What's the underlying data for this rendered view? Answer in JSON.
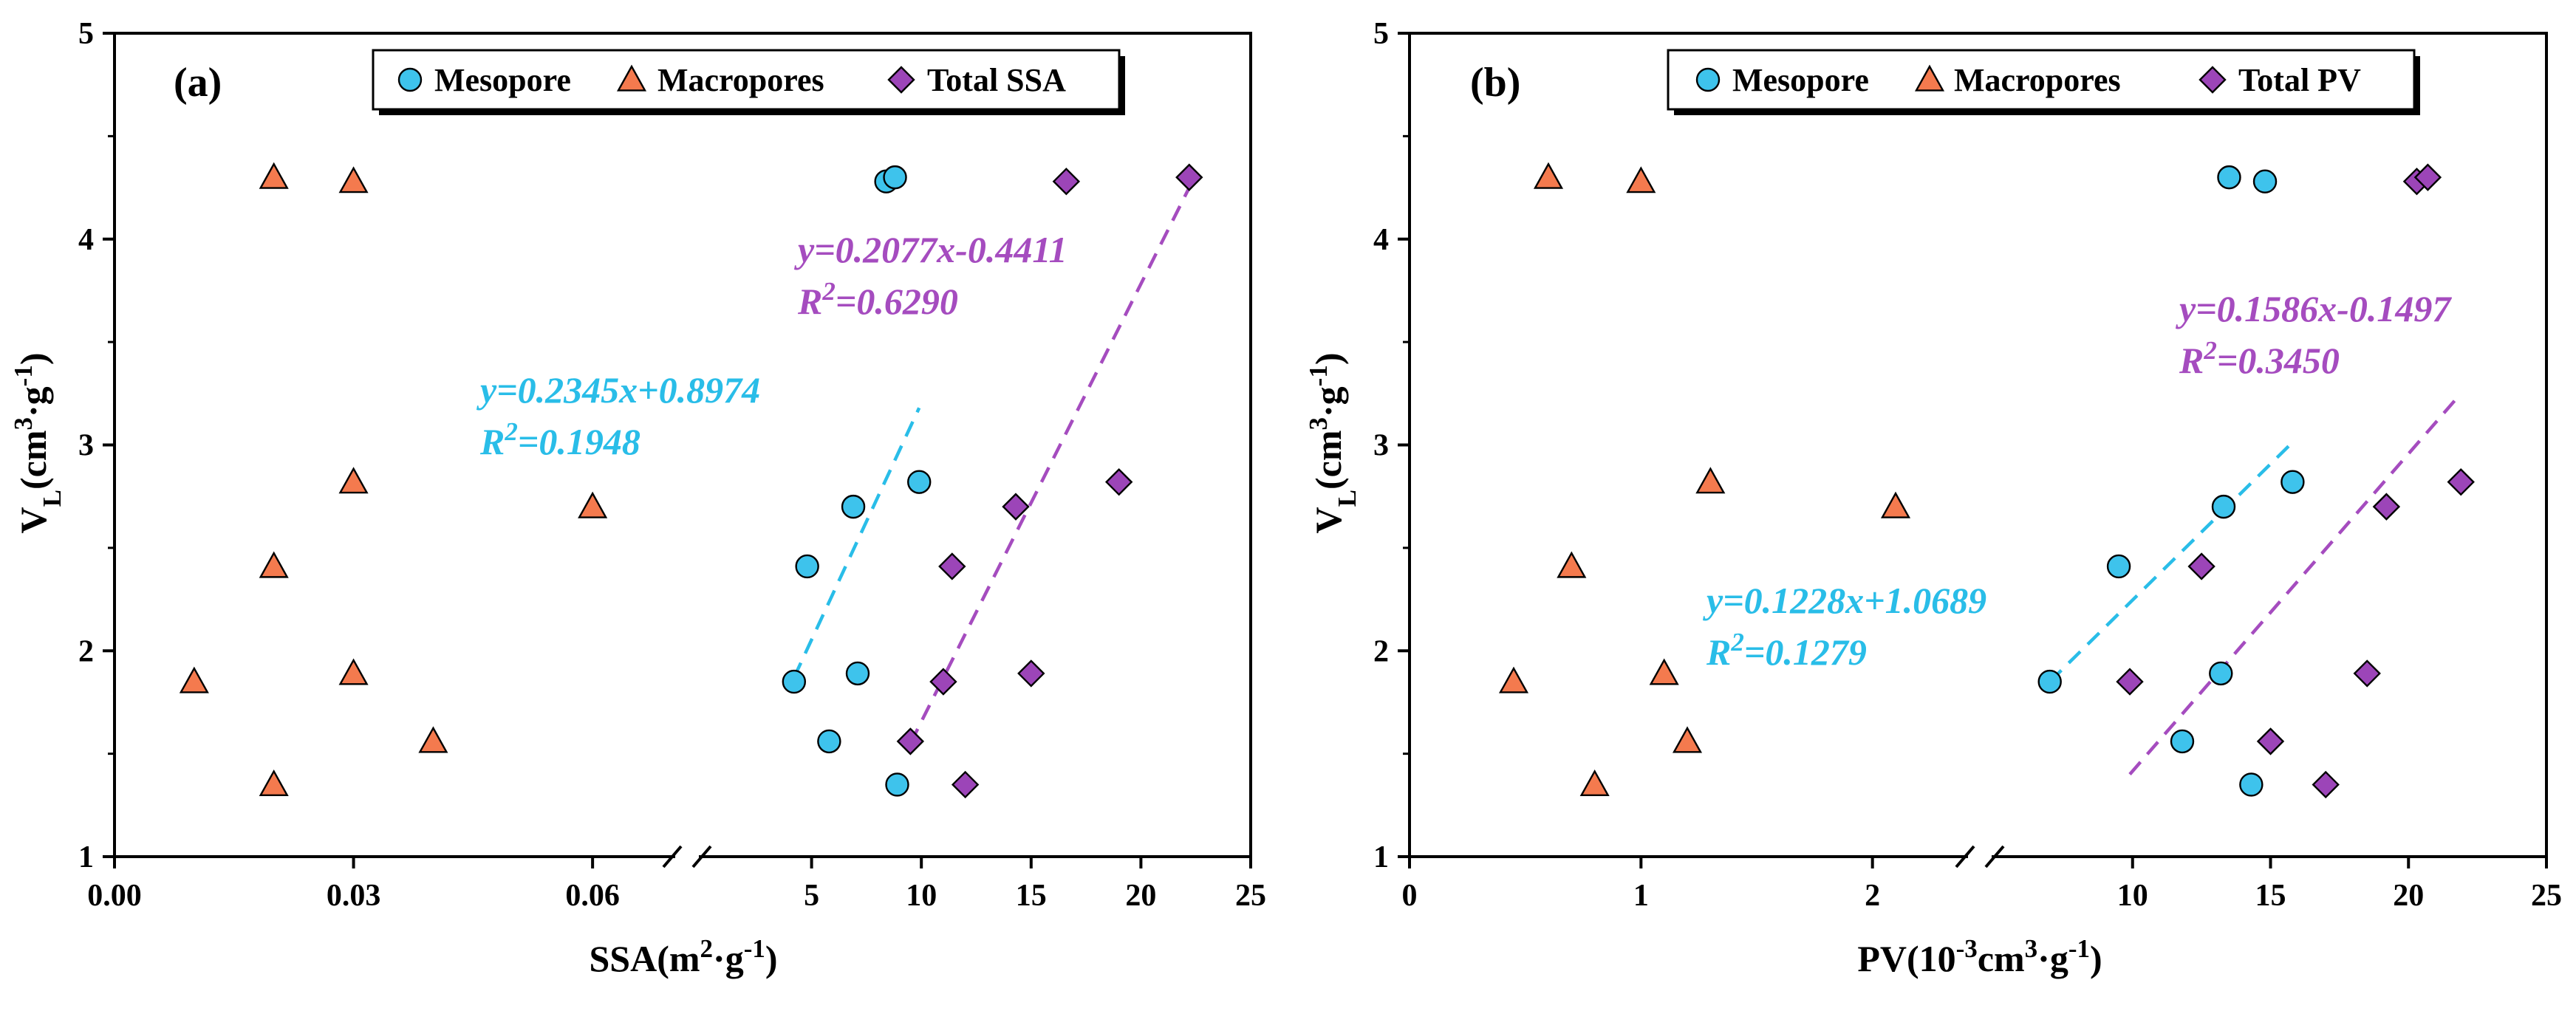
{
  "colors": {
    "mesopore": "#3ec3ec",
    "macropores": "#f47a4e",
    "total": "#9c45b8",
    "meso_fit": "#29bde8",
    "total_fit": "#a54cbf"
  },
  "chart_data": [
    {
      "type": "scatter",
      "panel_label": "(a)",
      "title": "",
      "xlabel": "SSA(m²·g⁻¹)",
      "ylabel": "VL(cm³·g⁻¹)",
      "ylim": [
        1,
        5
      ],
      "yticks": [
        "1",
        "2",
        "3",
        "4",
        "5"
      ],
      "x_left_segment": {
        "range": [
          0,
          0.07
        ],
        "ticks": [
          0.0,
          0.03,
          0.06
        ],
        "tick_labels": [
          "0.00",
          "0.03",
          "0.06"
        ]
      },
      "x_right_segment": {
        "range": [
          0,
          25
        ],
        "ticks": [
          5,
          10,
          15,
          20,
          25
        ],
        "tick_labels": [
          "5",
          "10",
          "15",
          "20",
          "25"
        ]
      },
      "legend": [
        "Mesopore",
        "Macropores",
        "Total SSA"
      ],
      "legend_position": "top-right",
      "series": [
        {
          "name": "Mesopore",
          "marker": "circle",
          "segment": "right",
          "points": [
            [
              4.2,
              1.85
            ],
            [
              4.8,
              2.41
            ],
            [
              5.8,
              1.56
            ],
            [
              6.9,
              2.7
            ],
            [
              7.1,
              1.89
            ],
            [
              8.4,
              4.28
            ],
            [
              8.8,
              4.3
            ],
            [
              8.9,
              1.35
            ],
            [
              9.9,
              2.82
            ]
          ]
        },
        {
          "name": "Macropores",
          "marker": "triangle",
          "segment": "left",
          "points": [
            [
              0.01,
              1.85
            ],
            [
              0.02,
              4.3
            ],
            [
              0.02,
              2.41
            ],
            [
              0.02,
              1.35
            ],
            [
              0.03,
              4.28
            ],
            [
              0.03,
              2.82
            ],
            [
              0.03,
              1.89
            ],
            [
              0.04,
              1.56
            ],
            [
              0.06,
              2.7
            ]
          ]
        },
        {
          "name": "Total SSA",
          "marker": "diamond",
          "segment": "right",
          "points": [
            [
              9.5,
              1.56
            ],
            [
              11.0,
              1.85
            ],
            [
              11.4,
              2.41
            ],
            [
              12.0,
              1.35
            ],
            [
              14.3,
              2.7
            ],
            [
              15.0,
              1.89
            ],
            [
              16.6,
              4.28
            ],
            [
              19.0,
              2.82
            ],
            [
              22.2,
              4.3
            ]
          ]
        }
      ],
      "fits": [
        {
          "name": "Mesopore fit",
          "equation": "y=0.2345x+0.8974",
          "r2": "R²=0.1948",
          "x_range": [
            4.2,
            9.9
          ],
          "y_range": [
            1.87,
            3.18
          ]
        },
        {
          "name": "Total SSA fit",
          "equation": "y=0.2077x-0.4411",
          "r2": "R²=0.6290",
          "x_range": [
            9.5,
            22.2
          ],
          "y_range": [
            1.55,
            4.25
          ]
        }
      ]
    },
    {
      "type": "scatter",
      "panel_label": "(b)",
      "title": "",
      "xlabel": "PV(10⁻³cm³·g⁻¹)",
      "ylabel": "VL(cm³·g⁻¹)",
      "ylim": [
        1,
        5
      ],
      "yticks": [
        "1",
        "2",
        "3",
        "4",
        "5"
      ],
      "x_left_segment": {
        "range": [
          0,
          2.4
        ],
        "ticks": [
          0,
          1,
          2
        ],
        "tick_labels": [
          "0",
          "1",
          "2"
        ]
      },
      "x_right_segment": {
        "range": [
          5,
          25
        ],
        "ticks": [
          10,
          15,
          20,
          25
        ],
        "tick_labels": [
          "10",
          "15",
          "20",
          "25"
        ]
      },
      "legend": [
        "Mesopore",
        "Macropores",
        "Total PV"
      ],
      "legend_position": "top-right",
      "series": [
        {
          "name": "Mesopore",
          "marker": "circle",
          "segment": "right",
          "points": [
            [
              7.0,
              1.85
            ],
            [
              9.5,
              2.41
            ],
            [
              11.8,
              1.56
            ],
            [
              13.2,
              1.89
            ],
            [
              13.3,
              2.7
            ],
            [
              13.5,
              4.3
            ],
            [
              14.3,
              1.35
            ],
            [
              14.8,
              4.28
            ],
            [
              15.8,
              2.82
            ]
          ]
        },
        {
          "name": "Macropores",
          "marker": "triangle",
          "segment": "left",
          "points": [
            [
              0.45,
              1.85
            ],
            [
              0.6,
              4.3
            ],
            [
              0.7,
              2.41
            ],
            [
              0.8,
              1.35
            ],
            [
              1.0,
              4.28
            ],
            [
              1.1,
              1.89
            ],
            [
              1.2,
              1.56
            ],
            [
              1.3,
              2.82
            ],
            [
              2.1,
              2.7
            ]
          ]
        },
        {
          "name": "Total PV",
          "marker": "diamond",
          "segment": "right",
          "points": [
            [
              9.9,
              1.85
            ],
            [
              12.5,
              2.41
            ],
            [
              15.0,
              1.56
            ],
            [
              17.0,
              1.35
            ],
            [
              18.5,
              1.89
            ],
            [
              19.2,
              2.7
            ],
            [
              20.3,
              4.28
            ],
            [
              20.7,
              4.3
            ],
            [
              21.9,
              2.82
            ]
          ]
        }
      ],
      "fits": [
        {
          "name": "Mesopore fit",
          "equation": "y=0.1228x+1.0689",
          "r2": "R²=0.1279",
          "x_range": [
            7.0,
            15.7
          ],
          "y_range": [
            1.85,
            3.0
          ]
        },
        {
          "name": "Total PV fit",
          "equation": "y=0.1586x-0.1497",
          "r2": "R²=0.3450",
          "x_range": [
            9.9,
            21.9
          ],
          "y_range": [
            1.4,
            3.25
          ]
        }
      ]
    }
  ]
}
